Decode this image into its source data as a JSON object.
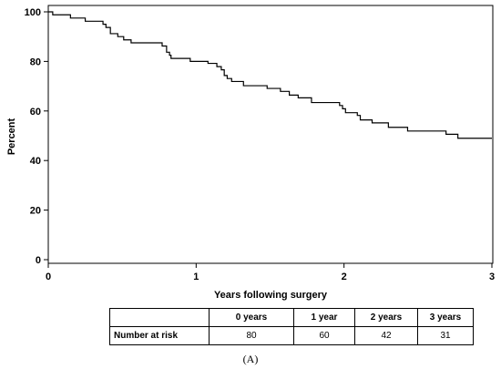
{
  "chart_data": {
    "type": "line",
    "subtype": "step",
    "xlabel": "Years following surgery",
    "ylabel": "Percent",
    "xlim": [
      0,
      3
    ],
    "ylim": [
      0,
      100
    ],
    "xticks": [
      "0",
      "1",
      "2",
      "3"
    ],
    "yticks": [
      "0",
      "20",
      "40",
      "60",
      "80",
      "100"
    ],
    "grid": false,
    "series": [
      {
        "color": "#000000",
        "x": [
          0,
          0.03,
          0.15,
          0.25,
          0.37,
          0.39,
          0.42,
          0.47,
          0.51,
          0.56,
          0.77,
          0.8,
          0.82,
          0.83,
          0.96,
          1.08,
          1.14,
          1.17,
          1.19,
          1.21,
          1.24,
          1.32,
          1.48,
          1.57,
          1.63,
          1.69,
          1.78,
          1.97,
          1.99,
          2.01,
          2.09,
          2.11,
          2.19,
          2.3,
          2.43,
          2.69,
          2.77,
          3.0
        ],
        "y": [
          100,
          98.8,
          97.5,
          96.2,
          95,
          93.7,
          91.2,
          90,
          88.7,
          87.5,
          86.2,
          83.7,
          82.5,
          81.2,
          80,
          79.2,
          77.9,
          76.6,
          74.3,
          73.1,
          71.9,
          70.2,
          69.1,
          67.9,
          66.4,
          65.3,
          63.4,
          62.2,
          60.9,
          59.3,
          58.2,
          56.4,
          55.2,
          53.4,
          51.9,
          50.6,
          49,
          49
        ]
      }
    ],
    "risk_table": {
      "row_label": "Number at risk",
      "headers": [
        "0 years",
        "1 year",
        "2 years",
        "3 years"
      ],
      "values": [
        "80",
        "60",
        "42",
        "31"
      ]
    },
    "caption": "(A)"
  }
}
